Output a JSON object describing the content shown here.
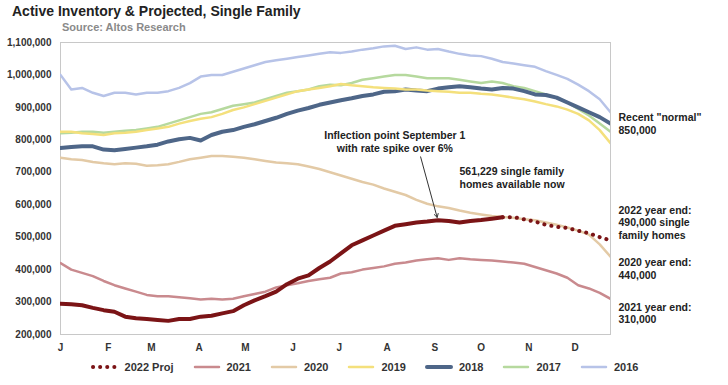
{
  "chart_data": {
    "type": "line",
    "title": "Active Inventory & Projected, Single Family",
    "subtitle": "Source: Altos Research",
    "x": [
      0,
      1,
      2,
      3,
      4,
      5,
      6,
      7,
      8,
      9,
      10,
      11,
      12,
      13,
      14,
      15,
      16,
      17,
      18,
      19,
      20,
      21,
      22,
      23,
      24,
      25,
      26,
      27,
      28,
      29,
      30,
      31,
      32,
      33,
      34,
      35,
      36,
      37,
      38,
      39,
      40,
      41,
      42,
      43,
      44,
      45,
      46,
      47,
      48,
      49,
      50,
      51
    ],
    "xlim": [
      0,
      51
    ],
    "xticks": [
      {
        "value": 0,
        "label": "J"
      },
      {
        "value": 4.43,
        "label": "F"
      },
      {
        "value": 8.43,
        "label": "M"
      },
      {
        "value": 12.86,
        "label": "A"
      },
      {
        "value": 17.14,
        "label": "M"
      },
      {
        "value": 21.57,
        "label": "J"
      },
      {
        "value": 25.86,
        "label": "J"
      },
      {
        "value": 30.29,
        "label": "A"
      },
      {
        "value": 34.71,
        "label": "S"
      },
      {
        "value": 39,
        "label": "O"
      },
      {
        "value": 43.43,
        "label": "N"
      },
      {
        "value": 47.71,
        "label": "D"
      }
    ],
    "ylim": [
      200000,
      1100000
    ],
    "yticks": [
      {
        "value": 200000,
        "label": "200,000"
      },
      {
        "value": 300000,
        "label": "300,000"
      },
      {
        "value": 400000,
        "label": "400,000"
      },
      {
        "value": 500000,
        "label": "500,000"
      },
      {
        "value": 600000,
        "label": "600,000"
      },
      {
        "value": 700000,
        "label": "700,000"
      },
      {
        "value": 800000,
        "label": "800,000"
      },
      {
        "value": 900000,
        "label": "900,000"
      },
      {
        "value": 1000000,
        "label": "1,000,000"
      },
      {
        "value": 1100000,
        "label": "1,100,000"
      }
    ],
    "grid": false,
    "legend": "bottom",
    "series": [
      {
        "name": "2022 Proj",
        "color": "#7b1416",
        "line_style": "dotted",
        "values": [
          null,
          null,
          null,
          null,
          null,
          null,
          null,
          null,
          null,
          null,
          null,
          null,
          null,
          null,
          null,
          null,
          null,
          null,
          null,
          null,
          null,
          null,
          null,
          null,
          null,
          null,
          null,
          null,
          null,
          null,
          null,
          null,
          null,
          null,
          null,
          null,
          null,
          null,
          null,
          null,
          null,
          561229,
          562000,
          555000,
          548000,
          538000,
          532000,
          528000,
          520000,
          512000,
          500000,
          490000
        ]
      },
      {
        "name": "2021",
        "color": "#c98a8e",
        "line_style": "solid",
        "values": [
          420000,
          400000,
          390000,
          380000,
          365000,
          352000,
          342000,
          332000,
          322000,
          318000,
          318000,
          315000,
          312000,
          308000,
          310000,
          308000,
          310000,
          318000,
          325000,
          332000,
          345000,
          352000,
          358000,
          365000,
          370000,
          375000,
          388000,
          392000,
          400000,
          405000,
          410000,
          418000,
          422000,
          428000,
          432000,
          435000,
          430000,
          435000,
          432000,
          430000,
          428000,
          425000,
          422000,
          418000,
          408000,
          398000,
          388000,
          375000,
          352000,
          342000,
          328000,
          310000
        ]
      },
      {
        "name": "2020",
        "color": "#e3caa6",
        "line_style": "solid",
        "values": [
          745000,
          740000,
          738000,
          732000,
          728000,
          725000,
          728000,
          726000,
          720000,
          722000,
          725000,
          732000,
          740000,
          745000,
          750000,
          750000,
          748000,
          745000,
          740000,
          735000,
          730000,
          728000,
          725000,
          718000,
          710000,
          700000,
          690000,
          680000,
          670000,
          662000,
          650000,
          640000,
          630000,
          615000,
          603000,
          595000,
          590000,
          582000,
          575000,
          570000,
          565000,
          562000,
          560000,
          555000,
          552000,
          545000,
          538000,
          530000,
          520000,
          508000,
          478000,
          440000
        ]
      },
      {
        "name": "2019",
        "color": "#f4e07c",
        "line_style": "solid",
        "values": [
          825000,
          825000,
          820000,
          818000,
          815000,
          820000,
          822000,
          825000,
          830000,
          835000,
          840000,
          850000,
          858000,
          865000,
          870000,
          880000,
          892000,
          900000,
          910000,
          920000,
          930000,
          940000,
          950000,
          955000,
          960000,
          965000,
          972000,
          968000,
          965000,
          962000,
          960000,
          958000,
          955000,
          955000,
          952000,
          950000,
          948000,
          945000,
          945000,
          942000,
          940000,
          935000,
          930000,
          925000,
          918000,
          910000,
          903000,
          893000,
          880000,
          860000,
          830000,
          790000
        ]
      },
      {
        "name": "2018",
        "color": "#4e6688",
        "line_style": "bold",
        "values": [
          775000,
          778000,
          780000,
          780000,
          770000,
          768000,
          772000,
          776000,
          780000,
          785000,
          795000,
          802000,
          806000,
          798000,
          815000,
          825000,
          830000,
          840000,
          848000,
          858000,
          868000,
          880000,
          890000,
          898000,
          908000,
          915000,
          922000,
          928000,
          935000,
          940000,
          948000,
          950000,
          955000,
          952000,
          950000,
          958000,
          962000,
          965000,
          962000,
          958000,
          955000,
          960000,
          958000,
          950000,
          940000,
          938000,
          930000,
          915000,
          900000,
          885000,
          870000,
          850000
        ]
      },
      {
        "name": "2017",
        "color": "#b6d99e",
        "line_style": "solid",
        "values": [
          820000,
          822000,
          825000,
          825000,
          822000,
          825000,
          828000,
          830000,
          835000,
          840000,
          850000,
          860000,
          870000,
          880000,
          885000,
          895000,
          905000,
          910000,
          915000,
          925000,
          935000,
          945000,
          950000,
          955000,
          965000,
          970000,
          968000,
          975000,
          985000,
          990000,
          995000,
          1000000,
          1000000,
          995000,
          990000,
          990000,
          990000,
          985000,
          980000,
          975000,
          980000,
          975000,
          965000,
          960000,
          950000,
          940000,
          930000,
          915000,
          895000,
          875000,
          850000,
          825000
        ]
      },
      {
        "name": "2016",
        "color": "#b7c3e8",
        "line_style": "solid",
        "values": [
          1000000,
          955000,
          960000,
          945000,
          935000,
          945000,
          945000,
          940000,
          945000,
          945000,
          950000,
          960000,
          975000,
          995000,
          1000000,
          1000000,
          1010000,
          1020000,
          1030000,
          1040000,
          1045000,
          1050000,
          1055000,
          1060000,
          1065000,
          1070000,
          1068000,
          1072000,
          1078000,
          1082000,
          1088000,
          1090000,
          1080000,
          1085000,
          1078000,
          1080000,
          1072000,
          1065000,
          1060000,
          1058000,
          1050000,
          1040000,
          1035000,
          1030000,
          1025000,
          1012000,
          1000000,
          988000,
          970000,
          950000,
          925000,
          885000
        ]
      },
      {
        "color": "#7b1416",
        "line_style": "bold",
        "values": [
          295000,
          293000,
          290000,
          282000,
          275000,
          270000,
          255000,
          250000,
          248000,
          245000,
          242000,
          248000,
          248000,
          255000,
          258000,
          265000,
          272000,
          290000,
          305000,
          318000,
          332000,
          355000,
          372000,
          382000,
          405000,
          425000,
          450000,
          475000,
          490000,
          505000,
          520000,
          535000,
          540000,
          545000,
          548000,
          552000,
          550000,
          545000,
          550000,
          553000,
          557000,
          561229,
          null,
          null,
          null,
          null,
          null,
          null,
          null,
          null,
          null,
          null
        ]
      }
    ],
    "annotations": [
      "Inflection point September 1\nwith rate spike over 6%",
      "561,229 single family\nhomes available now",
      "Recent \"normal\"\n850,000",
      "2022 year end:\n490,000 single\nfamily homes",
      "2020 year end:\n440,000",
      "2021 year end:\n310,000"
    ]
  }
}
